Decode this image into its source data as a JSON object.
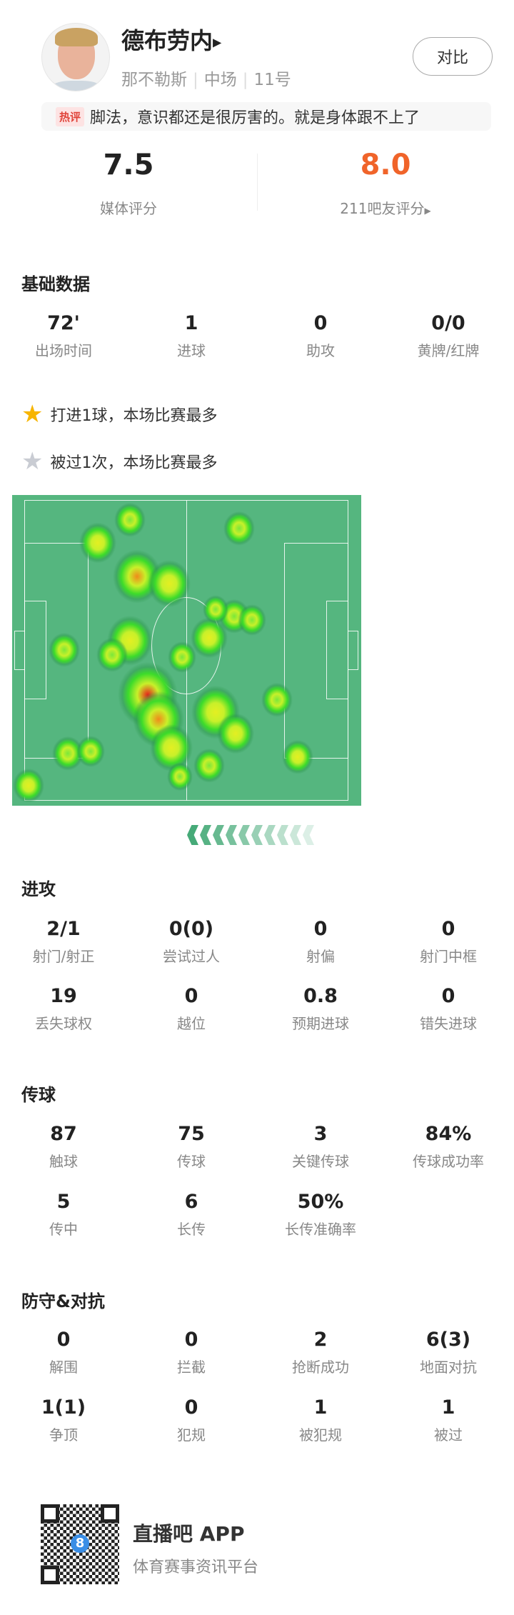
{
  "player": {
    "name": "德布劳内",
    "team": "那不勒斯",
    "position": "中场",
    "number": "11号",
    "compare_label": "对比"
  },
  "comment": {
    "tag": "热评",
    "text": "脚法，意识都还是很厉害的。就是身体跟不上了"
  },
  "ratings": {
    "media": {
      "value": "7.5",
      "label": "媒体评分"
    },
    "fans": {
      "value": "8.0",
      "label": "211吧友评分",
      "color": "#f0642a"
    }
  },
  "basic": {
    "title": "基础数据",
    "items": [
      {
        "v": "72'",
        "l": "出场时间"
      },
      {
        "v": "1",
        "l": "进球"
      },
      {
        "v": "0",
        "l": "助攻"
      },
      {
        "v": "0/0",
        "l": "黄牌/红牌"
      }
    ]
  },
  "highlights": [
    {
      "icon": "gold-star-icon",
      "text": "打进1球，本场比赛最多"
    },
    {
      "icon": "silver-star-icon",
      "text": "被过1次，本场比赛最多"
    }
  ],
  "attack": {
    "title": "进攻",
    "items": [
      {
        "v": "2/1",
        "l": "射门/射正"
      },
      {
        "v": "0(0)",
        "l": "尝试过人"
      },
      {
        "v": "0",
        "l": "射偏"
      },
      {
        "v": "0",
        "l": "射门中框"
      },
      {
        "v": "19",
        "l": "丢失球权"
      },
      {
        "v": "0",
        "l": "越位"
      },
      {
        "v": "0.8",
        "l": "预期进球"
      },
      {
        "v": "0",
        "l": "错失进球"
      }
    ]
  },
  "passing": {
    "title": "传球",
    "items": [
      {
        "v": "87",
        "l": "触球"
      },
      {
        "v": "75",
        "l": "传球"
      },
      {
        "v": "3",
        "l": "关键传球"
      },
      {
        "v": "84%",
        "l": "传球成功率"
      },
      {
        "v": "5",
        "l": "传中"
      },
      {
        "v": "6",
        "l": "长传"
      },
      {
        "v": "50%",
        "l": "长传准确率"
      }
    ]
  },
  "defense": {
    "title": "防守&对抗",
    "items": [
      {
        "v": "0",
        "l": "解围"
      },
      {
        "v": "0",
        "l": "拦截"
      },
      {
        "v": "2",
        "l": "抢断成功"
      },
      {
        "v": "6(3)",
        "l": "地面对抗"
      },
      {
        "v": "1(1)",
        "l": "争顶"
      },
      {
        "v": "0",
        "l": "犯规"
      },
      {
        "v": "1",
        "l": "被犯规"
      },
      {
        "v": "1",
        "l": "被过"
      }
    ]
  },
  "footer": {
    "app": "直播吧 APP",
    "subtitle": "体育赛事资讯平台",
    "qr_logo": "8"
  }
}
